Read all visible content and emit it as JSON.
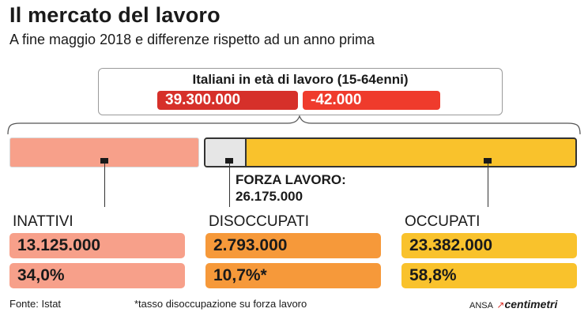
{
  "title": "Il mercato del lavoro",
  "subtitle": "A fine maggio 2018 e differenze rispetto ad un anno prima",
  "top": {
    "label": "Italiani in età di lavoro (15-64enni)",
    "value": "39.300.000",
    "change": "-42.000"
  },
  "forza_lavoro": {
    "label": "FORZA LAVORO:",
    "value": "26.175.000"
  },
  "categories": [
    {
      "name": "INATTIVI",
      "value": "13.125.000",
      "percent": "34,0%"
    },
    {
      "name": "DISOCCUPATI",
      "value": "2.793.000",
      "percent": "10,7%*"
    },
    {
      "name": "OCCUPATI",
      "value": "23.382.000",
      "percent": "58,8%"
    }
  ],
  "footer": {
    "source": "Fonte: Istat",
    "note": "*tasso disoccupazione su forza lavoro",
    "credit_ansa": "ANSA",
    "credit_centimetri": "centimetri"
  },
  "colors": {
    "inattivi": "#f7a08a",
    "disoccupati": "#f6993a",
    "occupati": "#f9c22c",
    "red": "#d9322b"
  }
}
